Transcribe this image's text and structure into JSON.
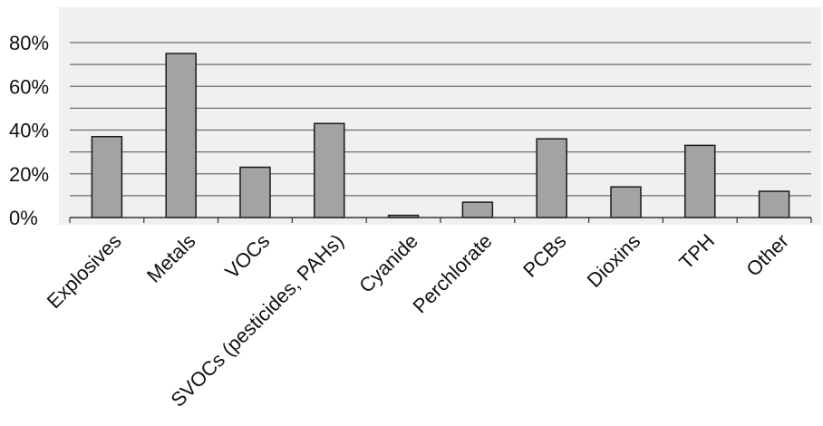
{
  "chart_data": {
    "type": "bar",
    "title": "",
    "xlabel": "",
    "ylabel": "",
    "categories": [
      "Explosives",
      "Metals",
      "VOCs",
      "SVOCs (pesticides, PAHs)",
      "Cyanide",
      "Perchlorate",
      "PCBs",
      "Dioxins",
      "TPH",
      "Other"
    ],
    "series": [
      {
        "values": [
          37,
          75,
          23,
          43,
          1,
          7,
          36,
          14,
          33,
          12
        ]
      }
    ],
    "ylim": [
      0,
      80
    ],
    "y_ticks": [
      "0%",
      "20%",
      "40%",
      "60%",
      "80%"
    ],
    "grid": true,
    "legend": "none",
    "colors": {
      "bar_fill": "#a3a3a3",
      "bar_stroke": "#1a1a1a",
      "plot_background": "#f0f0f0",
      "gridline": "#6e6e6e"
    }
  }
}
